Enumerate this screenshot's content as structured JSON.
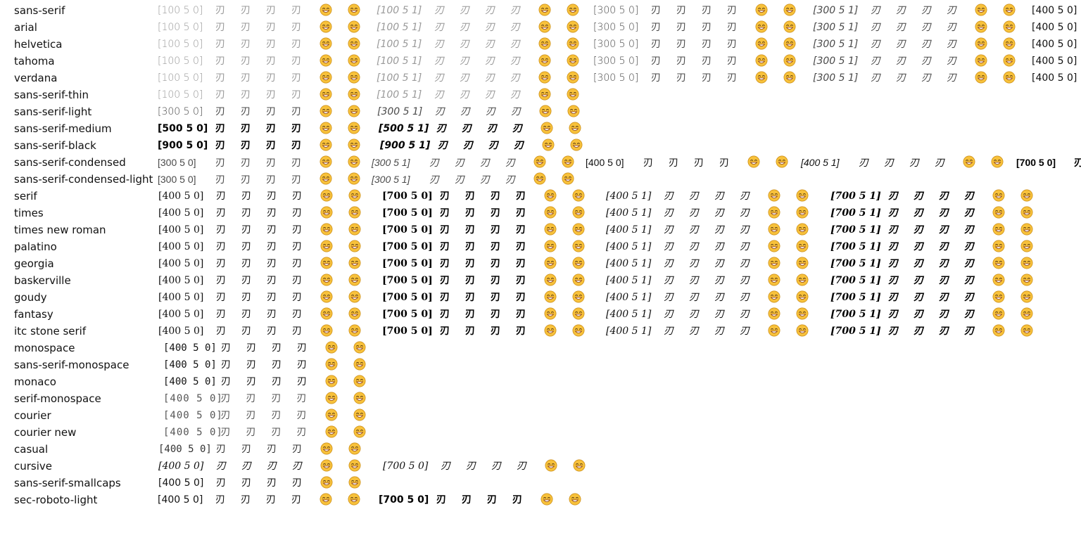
{
  "glyph_text": "刃",
  "emoji_icon": "grinning-face-with-smiling-eyes-icon",
  "colors": {
    "emoji_face": "#f7c13b",
    "emoji_outline": "#c98a12",
    "emoji_mouth": "#8a3b12",
    "text": "#111111",
    "thin_text": "#9a9a9a"
  },
  "rows": [
    {
      "name": "sans-serif",
      "font": "f-sans",
      "groups": [
        {
          "tag": "[100 5 0]",
          "weight": "w100",
          "italic": false,
          "x": 224
        },
        {
          "tag": "[100 5 1]",
          "weight": "w100",
          "italic": true,
          "x": 535
        },
        {
          "tag": "[300 5 0]",
          "weight": "w300",
          "italic": false,
          "x": 843
        },
        {
          "tag": "[300 5 1]",
          "weight": "w300",
          "italic": true,
          "x": 1155
        },
        {
          "tag": "[400 5 0]",
          "weight": "w400",
          "italic": false,
          "x": 1466
        }
      ]
    },
    {
      "name": "arial",
      "font": "f-sans",
      "groups": [
        {
          "tag": "[100 5 0]",
          "weight": "w100",
          "italic": false,
          "x": 224
        },
        {
          "tag": "[100 5 1]",
          "weight": "w100",
          "italic": true,
          "x": 535
        },
        {
          "tag": "[300 5 0]",
          "weight": "w300",
          "italic": false,
          "x": 843
        },
        {
          "tag": "[300 5 1]",
          "weight": "w300",
          "italic": true,
          "x": 1155
        },
        {
          "tag": "[400 5 0]",
          "weight": "w400",
          "italic": false,
          "x": 1466
        }
      ]
    },
    {
      "name": "helvetica",
      "font": "f-sans",
      "groups": [
        {
          "tag": "[100 5 0]",
          "weight": "w100",
          "italic": false,
          "x": 224
        },
        {
          "tag": "[100 5 1]",
          "weight": "w100",
          "italic": true,
          "x": 535
        },
        {
          "tag": "[300 5 0]",
          "weight": "w300",
          "italic": false,
          "x": 843
        },
        {
          "tag": "[300 5 1]",
          "weight": "w300",
          "italic": true,
          "x": 1155
        },
        {
          "tag": "[400 5 0]",
          "weight": "w400",
          "italic": false,
          "x": 1466
        }
      ]
    },
    {
      "name": "tahoma",
      "font": "f-sans",
      "groups": [
        {
          "tag": "[100 5 0]",
          "weight": "w100",
          "italic": false,
          "x": 224
        },
        {
          "tag": "[100 5 1]",
          "weight": "w100",
          "italic": true,
          "x": 535
        },
        {
          "tag": "[300 5 0]",
          "weight": "w300",
          "italic": false,
          "x": 843
        },
        {
          "tag": "[300 5 1]",
          "weight": "w300",
          "italic": true,
          "x": 1155
        },
        {
          "tag": "[400 5 0]",
          "weight": "w400",
          "italic": false,
          "x": 1466
        }
      ]
    },
    {
      "name": "verdana",
      "font": "f-sans",
      "groups": [
        {
          "tag": "[100 5 0]",
          "weight": "w100",
          "italic": false,
          "x": 224
        },
        {
          "tag": "[100 5 1]",
          "weight": "w100",
          "italic": true,
          "x": 535
        },
        {
          "tag": "[300 5 0]",
          "weight": "w300",
          "italic": false,
          "x": 843
        },
        {
          "tag": "[300 5 1]",
          "weight": "w300",
          "italic": true,
          "x": 1155
        },
        {
          "tag": "[400 5 0]",
          "weight": "w400",
          "italic": false,
          "x": 1466
        }
      ]
    },
    {
      "name": "sans-serif-thin",
      "font": "f-sans",
      "groups": [
        {
          "tag": "[100 5 0]",
          "weight": "w100",
          "italic": false,
          "x": 224
        },
        {
          "tag": "[100 5 1]",
          "weight": "w100",
          "italic": true,
          "x": 535
        }
      ]
    },
    {
      "name": "sans-serif-light",
      "font": "f-sans",
      "groups": [
        {
          "tag": "[300 5 0]",
          "weight": "w300",
          "italic": false,
          "x": 224
        },
        {
          "tag": "[300 5 1]",
          "weight": "w300",
          "italic": true,
          "x": 536
        }
      ]
    },
    {
      "name": "sans-serif-medium",
      "font": "f-sans",
      "groups": [
        {
          "tag": "[500 5 0]",
          "weight": "w500",
          "italic": false,
          "x": 224
        },
        {
          "tag": "[500 5 1]",
          "weight": "w500",
          "italic": true,
          "x": 538
        }
      ]
    },
    {
      "name": "sans-serif-black",
      "font": "f-sans",
      "groups": [
        {
          "tag": "[900 5 0]",
          "weight": "w900",
          "italic": false,
          "x": 224
        },
        {
          "tag": "[900 5 1]",
          "weight": "w900",
          "italic": true,
          "x": 540
        }
      ]
    },
    {
      "name": "sans-serif-condensed",
      "font": "f-cond",
      "groups": [
        {
          "tag": "[300 5 0]",
          "weight": "w300",
          "italic": false,
          "x": 224
        },
        {
          "tag": "[300 5 1]",
          "weight": "w300",
          "italic": true,
          "x": 528
        },
        {
          "tag": "[400 5 0]",
          "weight": "w400",
          "italic": false,
          "x": 832
        },
        {
          "tag": "[400 5 1]",
          "weight": "w400",
          "italic": true,
          "x": 1138
        },
        {
          "tag": "[700 5 0]",
          "weight": "w700",
          "italic": false,
          "x": 1444
        }
      ]
    },
    {
      "name": "sans-serif-condensed-light",
      "font": "f-cond",
      "groups": [
        {
          "tag": "[300 5 0]",
          "weight": "w300",
          "italic": false,
          "x": 224
        },
        {
          "tag": "[300 5 1]",
          "weight": "w300",
          "italic": true,
          "x": 528
        }
      ]
    },
    {
      "name": "serif",
      "font": "f-serif",
      "groups": [
        {
          "tag": "[400 5 0]",
          "weight": "w400",
          "italic": false,
          "x": 225
        },
        {
          "tag": "[700 5 0]",
          "weight": "w700",
          "italic": false,
          "x": 543
        },
        {
          "tag": "[400 5 1]",
          "weight": "w400",
          "italic": true,
          "x": 861
        },
        {
          "tag": "[700 5 1]",
          "weight": "w700",
          "italic": true,
          "x": 1180
        }
      ]
    },
    {
      "name": "times",
      "font": "f-serif",
      "groups": [
        {
          "tag": "[400 5 0]",
          "weight": "w400",
          "italic": false,
          "x": 225
        },
        {
          "tag": "[700 5 0]",
          "weight": "w700",
          "italic": false,
          "x": 543
        },
        {
          "tag": "[400 5 1]",
          "weight": "w400",
          "italic": true,
          "x": 861
        },
        {
          "tag": "[700 5 1]",
          "weight": "w700",
          "italic": true,
          "x": 1180
        }
      ]
    },
    {
      "name": "times new roman",
      "font": "f-serif",
      "groups": [
        {
          "tag": "[400 5 0]",
          "weight": "w400",
          "italic": false,
          "x": 225
        },
        {
          "tag": "[700 5 0]",
          "weight": "w700",
          "italic": false,
          "x": 543
        },
        {
          "tag": "[400 5 1]",
          "weight": "w400",
          "italic": true,
          "x": 861
        },
        {
          "tag": "[700 5 1]",
          "weight": "w700",
          "italic": true,
          "x": 1180
        }
      ]
    },
    {
      "name": "palatino",
      "font": "f-serif",
      "groups": [
        {
          "tag": "[400 5 0]",
          "weight": "w400",
          "italic": false,
          "x": 225
        },
        {
          "tag": "[700 5 0]",
          "weight": "w700",
          "italic": false,
          "x": 543
        },
        {
          "tag": "[400 5 1]",
          "weight": "w400",
          "italic": true,
          "x": 861
        },
        {
          "tag": "[700 5 1]",
          "weight": "w700",
          "italic": true,
          "x": 1180
        }
      ]
    },
    {
      "name": "georgia",
      "font": "f-serif",
      "groups": [
        {
          "tag": "[400 5 0]",
          "weight": "w400",
          "italic": false,
          "x": 225
        },
        {
          "tag": "[700 5 0]",
          "weight": "w700",
          "italic": false,
          "x": 543
        },
        {
          "tag": "[400 5 1]",
          "weight": "w400",
          "italic": true,
          "x": 861
        },
        {
          "tag": "[700 5 1]",
          "weight": "w700",
          "italic": true,
          "x": 1180
        }
      ]
    },
    {
      "name": "baskerville",
      "font": "f-serif",
      "groups": [
        {
          "tag": "[400 5 0]",
          "weight": "w400",
          "italic": false,
          "x": 225
        },
        {
          "tag": "[700 5 0]",
          "weight": "w700",
          "italic": false,
          "x": 543
        },
        {
          "tag": "[400 5 1]",
          "weight": "w400",
          "italic": true,
          "x": 861
        },
        {
          "tag": "[700 5 1]",
          "weight": "w700",
          "italic": true,
          "x": 1180
        }
      ]
    },
    {
      "name": "goudy",
      "font": "f-serif",
      "groups": [
        {
          "tag": "[400 5 0]",
          "weight": "w400",
          "italic": false,
          "x": 225
        },
        {
          "tag": "[700 5 0]",
          "weight": "w700",
          "italic": false,
          "x": 543
        },
        {
          "tag": "[400 5 1]",
          "weight": "w400",
          "italic": true,
          "x": 861
        },
        {
          "tag": "[700 5 1]",
          "weight": "w700",
          "italic": true,
          "x": 1180
        }
      ]
    },
    {
      "name": "fantasy",
      "font": "f-serif",
      "groups": [
        {
          "tag": "[400 5 0]",
          "weight": "w400",
          "italic": false,
          "x": 225
        },
        {
          "tag": "[700 5 0]",
          "weight": "w700",
          "italic": false,
          "x": 543
        },
        {
          "tag": "[400 5 1]",
          "weight": "w400",
          "italic": true,
          "x": 861
        },
        {
          "tag": "[700 5 1]",
          "weight": "w700",
          "italic": true,
          "x": 1180
        }
      ]
    },
    {
      "name": "itc stone serif",
      "font": "f-serif",
      "groups": [
        {
          "tag": "[400 5 0]",
          "weight": "w400",
          "italic": false,
          "x": 225
        },
        {
          "tag": "[700 5 0]",
          "weight": "w700",
          "italic": false,
          "x": 543
        },
        {
          "tag": "[400 5 1]",
          "weight": "w400",
          "italic": true,
          "x": 861
        },
        {
          "tag": "[700 5 1]",
          "weight": "w700",
          "italic": true,
          "x": 1180
        }
      ]
    },
    {
      "name": "monospace",
      "font": "f-mono",
      "groups": [
        {
          "tag": "[400 5 0]",
          "weight": "w400",
          "italic": false,
          "x": 232
        }
      ]
    },
    {
      "name": "sans-serif-monospace",
      "font": "f-mono",
      "groups": [
        {
          "tag": "[400 5 0]",
          "weight": "w400",
          "italic": false,
          "x": 232
        }
      ]
    },
    {
      "name": "monaco",
      "font": "f-mono",
      "groups": [
        {
          "tag": "[400 5 0]",
          "weight": "w400",
          "italic": false,
          "x": 232
        }
      ]
    },
    {
      "name": "serif-monospace",
      "font": "f-mono-light",
      "groups": [
        {
          "tag": "[400 5 0]",
          "weight": "w300",
          "italic": false,
          "x": 232
        }
      ]
    },
    {
      "name": "courier",
      "font": "f-mono-light",
      "groups": [
        {
          "tag": "[400 5 0]",
          "weight": "w300",
          "italic": false,
          "x": 232
        }
      ]
    },
    {
      "name": "courier new",
      "font": "f-mono-light",
      "groups": [
        {
          "tag": "[400 5 0]",
          "weight": "w300",
          "italic": false,
          "x": 232
        }
      ]
    },
    {
      "name": "casual",
      "font": "f-casual",
      "groups": [
        {
          "tag": "[400 5 0]",
          "weight": "w400",
          "italic": false,
          "x": 225
        }
      ]
    },
    {
      "name": "cursive",
      "font": "f-cursive",
      "groups": [
        {
          "tag": "[400 5 0]",
          "weight": "w400",
          "italic": true,
          "x": 225
        },
        {
          "tag": "[700 5 0]",
          "weight": "w400",
          "italic": true,
          "x": 544
        }
      ]
    },
    {
      "name": "sans-serif-smallcaps",
      "font": "f-smallcaps",
      "groups": [
        {
          "tag": "[400 5 0]",
          "weight": "w400",
          "italic": false,
          "x": 225
        }
      ]
    },
    {
      "name": "sec-roboto-light",
      "font": "f-sans",
      "groups": [
        {
          "tag": "[400 5 0]",
          "weight": "w400",
          "italic": false,
          "x": 224
        },
        {
          "tag": "[700 5 0]",
          "weight": "w700",
          "italic": false,
          "x": 538
        }
      ]
    }
  ]
}
